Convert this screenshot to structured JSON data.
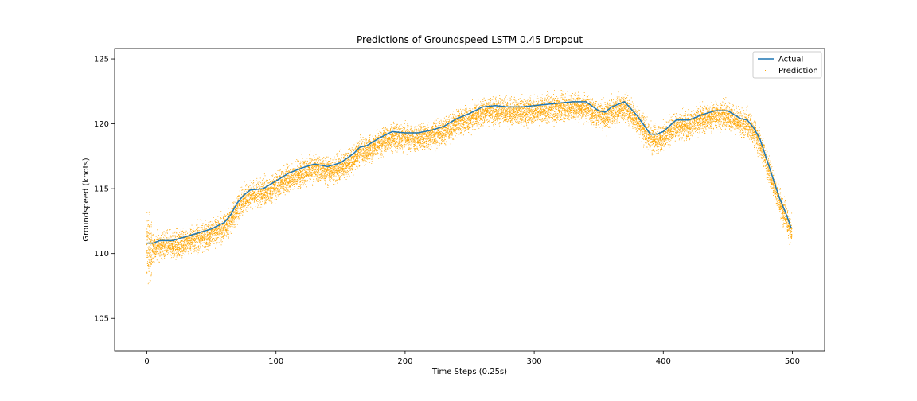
{
  "chart_data": {
    "type": "line",
    "title": "Predictions of Groundspeed LSTM 0.45 Dropout",
    "xlabel": "Time Steps (0.25s)",
    "ylabel": "Groundspeed (knots)",
    "xlim": [
      -25,
      525
    ],
    "ylim": [
      102.5,
      125.8
    ],
    "xticks": [
      0,
      100,
      200,
      300,
      400,
      500
    ],
    "yticks": [
      105,
      110,
      115,
      120,
      125
    ],
    "grid": false,
    "legend_position": "top-right",
    "series": [
      {
        "name": "Actual",
        "style": "line",
        "color": "#1f77b4",
        "x": [
          0,
          5,
          10,
          20,
          30,
          40,
          50,
          60,
          65,
          70,
          75,
          80,
          90,
          100,
          110,
          120,
          130,
          140,
          150,
          160,
          165,
          170,
          180,
          190,
          200,
          210,
          220,
          230,
          240,
          250,
          260,
          270,
          280,
          290,
          300,
          310,
          320,
          330,
          340,
          350,
          355,
          360,
          370,
          380,
          390,
          395,
          400,
          410,
          420,
          430,
          440,
          450,
          460,
          465,
          470,
          475,
          480,
          485,
          490,
          495,
          499
        ],
        "y": [
          110.8,
          110.8,
          111.0,
          111.0,
          111.3,
          111.6,
          111.9,
          112.4,
          113.0,
          113.9,
          114.5,
          114.9,
          115.0,
          115.6,
          116.2,
          116.6,
          116.9,
          116.7,
          117.0,
          117.7,
          118.2,
          118.3,
          118.9,
          119.4,
          119.3,
          119.3,
          119.5,
          119.8,
          120.4,
          120.8,
          121.3,
          121.4,
          121.3,
          121.3,
          121.4,
          121.5,
          121.6,
          121.7,
          121.7,
          121.0,
          120.9,
          121.3,
          121.7,
          120.6,
          119.2,
          119.2,
          119.4,
          120.3,
          120.3,
          120.7,
          121.0,
          121.0,
          120.4,
          120.3,
          119.7,
          118.8,
          117.3,
          115.8,
          114.3,
          113.1,
          112.0
        ]
      },
      {
        "name": "Prediction",
        "style": "scatter",
        "color": "#ffa500",
        "x_range": [
          0,
          499
        ],
        "samples_per_step": 28,
        "spread_knots": 0.9,
        "center": "Actual"
      }
    ]
  }
}
